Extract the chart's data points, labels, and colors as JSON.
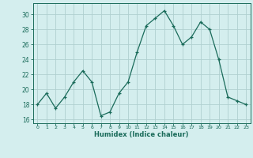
{
  "x": [
    0,
    1,
    2,
    3,
    4,
    5,
    6,
    7,
    8,
    9,
    10,
    11,
    12,
    13,
    14,
    15,
    16,
    17,
    18,
    19,
    20,
    21,
    22,
    23
  ],
  "y": [
    18,
    19.5,
    17.5,
    19,
    21,
    22.5,
    21,
    16.5,
    17,
    19.5,
    21,
    25,
    28.5,
    29.5,
    30.5,
    28.5,
    26,
    27,
    29,
    28,
    24,
    19,
    18.5,
    18
  ],
  "xlabel": "Humidex (Indice chaleur)",
  "ylim": [
    15.5,
    31.5
  ],
  "xlim": [
    -0.5,
    23.5
  ],
  "yticks": [
    16,
    18,
    20,
    22,
    24,
    26,
    28,
    30
  ],
  "xticks": [
    0,
    1,
    2,
    3,
    4,
    5,
    6,
    7,
    8,
    9,
    10,
    11,
    12,
    13,
    14,
    15,
    16,
    17,
    18,
    19,
    20,
    21,
    22,
    23
  ],
  "line_color": "#1a6b5a",
  "marker": "+",
  "bg_color": "#d4eeee",
  "grid_color": "#b0d0d0",
  "tick_color": "#1a6b5a",
  "label_color": "#1a6b5a",
  "spine_color": "#1a6b5a"
}
